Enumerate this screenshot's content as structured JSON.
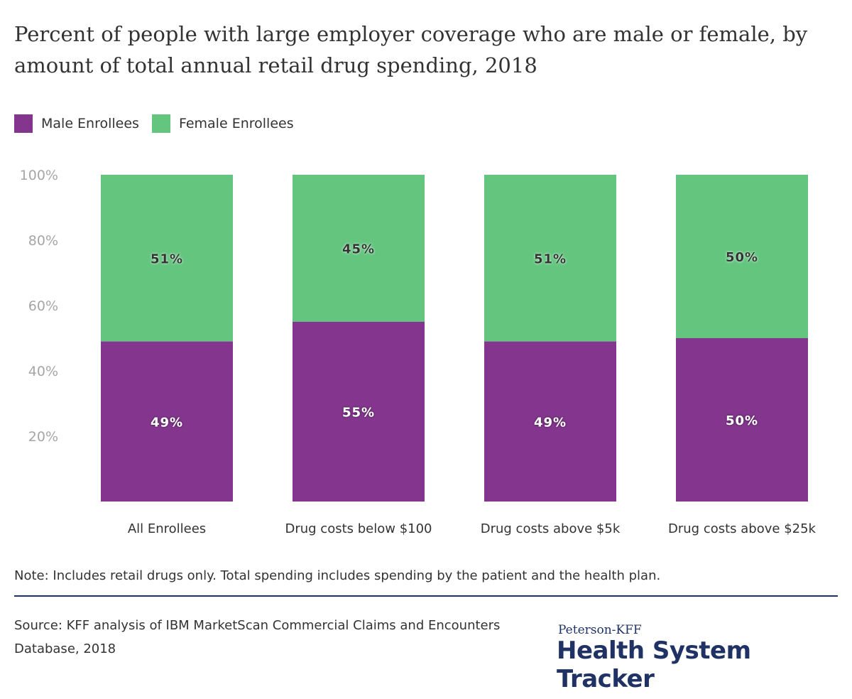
{
  "chart_data": {
    "type": "bar",
    "stacked": true,
    "title": "Percent of people with large employer coverage who are male or female, by amount of total annual retail drug spending, 2018",
    "categories": [
      "All Enrollees",
      "Drug costs below $100",
      "Drug costs above $5k",
      "Drug costs above $25k"
    ],
    "series": [
      {
        "name": "Male Enrollees",
        "color": "#84368e",
        "values": [
          49,
          55,
          49,
          50
        ],
        "labels": [
          "49%",
          "55%",
          "49%",
          "50%"
        ]
      },
      {
        "name": "Female Enrollees",
        "color": "#64c57f",
        "values": [
          51,
          45,
          51,
          50
        ],
        "labels": [
          "51%",
          "45%",
          "51%",
          "50%"
        ]
      }
    ],
    "ylim": [
      0,
      100
    ],
    "yticks": [
      "20%",
      "40%",
      "60%",
      "80%",
      "100%"
    ],
    "ytick_values": [
      20,
      40,
      60,
      80,
      100
    ],
    "grid": false,
    "legend": "top-left"
  },
  "note": "Note: Includes retail drugs only. Total spending includes spending by the patient and the health plan.",
  "source": "Source: KFF analysis of IBM MarketScan Commercial Claims and Encounters Database, 2018",
  "logo": {
    "top": "Peterson-KFF",
    "main": "Health System Tracker"
  }
}
